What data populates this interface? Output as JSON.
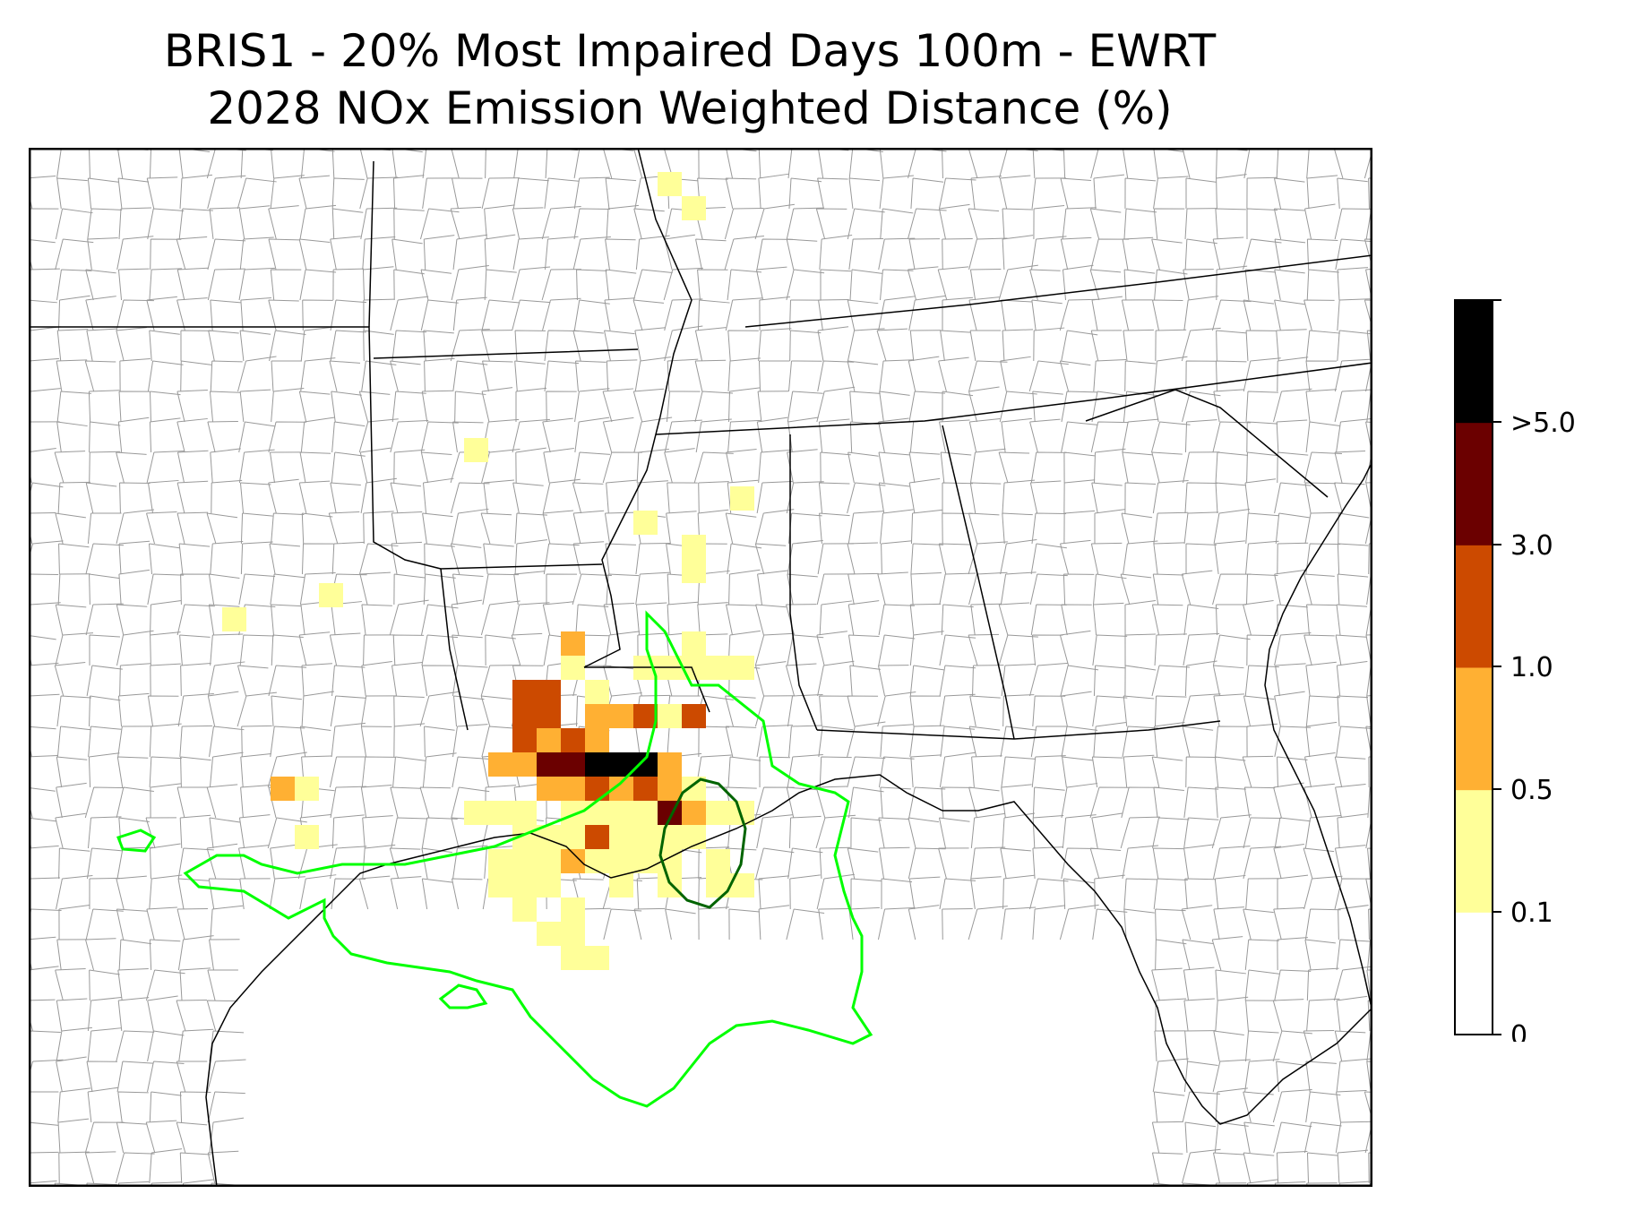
{
  "title": {
    "line1": "BRIS1 - 20% Most Impaired Days 100m - EWRT",
    "line2": "2028 NOx Emission Weighted Distance (%)"
  },
  "legend": {
    "levels": [
      {
        "label": "0",
        "color": "#ffffff"
      },
      {
        "label": "0.1",
        "color": "#ffff99"
      },
      {
        "label": "0.5",
        "color": "#ffb033"
      },
      {
        "label": "1.0",
        "color": "#cc4a00"
      },
      {
        "label": "3.0",
        "color": "#6b0000"
      },
      {
        "label": ">5.0",
        "color": "#000000"
      }
    ]
  },
  "colors": {
    "outer_contour": "#00ff00",
    "inner_contour": "#006400",
    "state_boundary": "#000000",
    "county_boundary": "#999999"
  }
}
